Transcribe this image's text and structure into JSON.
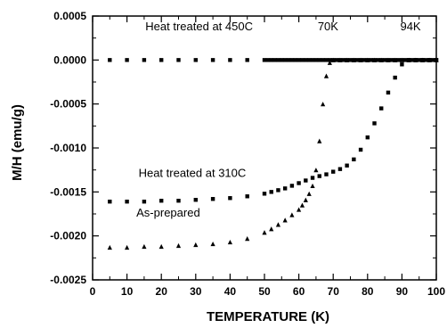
{
  "chart_data": {
    "type": "scatter",
    "xlabel": "TEMPERATURE  (K)",
    "ylabel": "M/H  (emu/g)",
    "xlim": [
      0,
      100
    ],
    "ylim": [
      -0.0025,
      0.0005
    ],
    "xticks": [
      0,
      10,
      20,
      30,
      40,
      50,
      60,
      70,
      80,
      90,
      100
    ],
    "yticks": [
      0.0005,
      0.0,
      -0.0005,
      -0.001,
      -0.0015,
      -0.002,
      -0.0025
    ],
    "xtick_labels": [
      "0",
      "10",
      "20",
      "30",
      "40",
      "50",
      "60",
      "70",
      "80",
      "90",
      "100"
    ],
    "ytick_labels": [
      "0.0005",
      "0.0000",
      "-0.0005",
      "-0.0010",
      "-0.0015",
      "-0.0020",
      "-0.0025"
    ],
    "grid": false,
    "annotations": [
      {
        "text": "Heat treated at 450C",
        "x": 31,
        "y": 0.00034
      },
      {
        "text": "70K",
        "x": 68.5,
        "y": 0.00034
      },
      {
        "text": "94K",
        "x": 92.5,
        "y": 0.00034
      },
      {
        "text": "Heat treated at 310C",
        "x": 29,
        "y": -0.00133
      },
      {
        "text": "As-prepared",
        "x": 22,
        "y": -0.00178
      }
    ],
    "series": [
      {
        "marker": "square",
        "color": "#000000",
        "x": [
          5,
          10,
          15,
          20,
          25,
          30,
          35,
          40,
          45,
          50,
          51,
          52,
          53,
          54,
          55,
          56,
          57,
          58,
          59,
          60,
          61,
          62,
          63,
          64,
          65,
          66,
          67,
          68,
          69,
          70,
          71,
          72,
          73,
          74,
          75,
          76,
          77,
          78,
          79,
          80,
          81,
          82,
          83,
          84,
          85,
          86,
          87,
          88,
          89,
          90,
          91,
          92,
          93,
          94,
          95,
          96,
          97,
          98,
          99,
          100
        ],
        "y": [
          0,
          0,
          0,
          0,
          0,
          0,
          0,
          0,
          0,
          0,
          0,
          0,
          0,
          0,
          0,
          0,
          0,
          0,
          0,
          0,
          0,
          0,
          0,
          0,
          0,
          0,
          0,
          0,
          0,
          0,
          0,
          0,
          0,
          0,
          0,
          0,
          0,
          0,
          0,
          0,
          0,
          0,
          0,
          0,
          0,
          0,
          0,
          0,
          0,
          0,
          0,
          0,
          0,
          0,
          0,
          0,
          0,
          0,
          0,
          0
        ]
      },
      {
        "marker": "square",
        "color": "#000000",
        "x": [
          5,
          10,
          15,
          20,
          25,
          30,
          35,
          40,
          45,
          50,
          52,
          54,
          56,
          58,
          60,
          62,
          64,
          66,
          68,
          70,
          72,
          74,
          76,
          78,
          80,
          82,
          84,
          86,
          88,
          90,
          92,
          94,
          96,
          98,
          100
        ],
        "y": [
          -0.00161,
          -0.00161,
          -0.00161,
          -0.0016,
          -0.0016,
          -0.00159,
          -0.00158,
          -0.00157,
          -0.00155,
          -0.00152,
          -0.0015,
          -0.00148,
          -0.00146,
          -0.00143,
          -0.0014,
          -0.00137,
          -0.00134,
          -0.00132,
          -0.0013,
          -0.00127,
          -0.00124,
          -0.0012,
          -0.00113,
          -0.00102,
          -0.00088,
          -0.00072,
          -0.00055,
          -0.00037,
          -0.0002,
          -5e-05,
          0,
          0,
          0,
          0,
          0
        ]
      },
      {
        "marker": "triangle",
        "color": "#000000",
        "x": [
          5,
          10,
          15,
          20,
          25,
          30,
          35,
          40,
          45,
          50,
          52,
          54,
          56,
          58,
          60,
          61,
          62,
          63,
          64,
          65,
          66,
          67,
          68,
          69,
          70,
          72,
          74,
          76,
          78,
          80,
          82,
          84,
          86,
          88,
          90,
          92,
          94,
          96,
          98,
          100
        ],
        "y": [
          -0.00213,
          -0.00213,
          -0.00212,
          -0.00212,
          -0.00211,
          -0.0021,
          -0.00209,
          -0.00207,
          -0.00203,
          -0.00196,
          -0.00192,
          -0.00187,
          -0.00182,
          -0.00176,
          -0.0017,
          -0.00165,
          -0.00159,
          -0.00152,
          -0.00143,
          -0.00125,
          -0.00092,
          -0.0005,
          -0.00018,
          -3e-05,
          0,
          0,
          0,
          0,
          0,
          0,
          0,
          0,
          0,
          0,
          0,
          0,
          0,
          0,
          0,
          0
        ]
      }
    ]
  }
}
